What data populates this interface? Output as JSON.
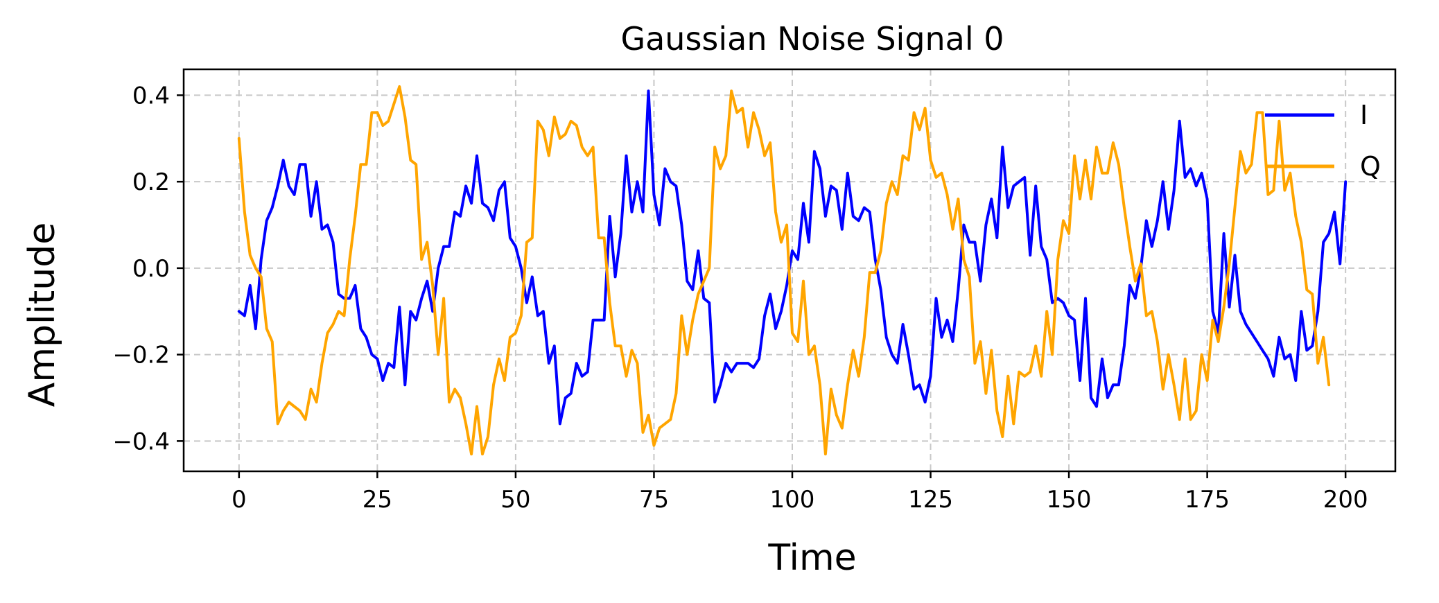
{
  "chart_data": {
    "type": "line",
    "title": "Gaussian Noise Signal 0",
    "xlabel": "Time",
    "ylabel": "Amplitude",
    "xlim": [
      -10,
      209
    ],
    "ylim": [
      -0.47,
      0.46
    ],
    "xticks": [
      0,
      25,
      50,
      75,
      100,
      125,
      150,
      175,
      200
    ],
    "xtick_labels": [
      "0",
      "25",
      "50",
      "75",
      "100",
      "125",
      "150",
      "175",
      "200"
    ],
    "yticks": [
      -0.4,
      -0.2,
      0.0,
      0.2,
      0.4
    ],
    "ytick_labels": [
      "−0.4",
      "−0.2",
      "0.0",
      "0.2",
      "0.4"
    ],
    "grid": true,
    "legend_position": "top-right",
    "series": [
      {
        "name": "I",
        "color": "#0000ff",
        "values": [
          -0.1,
          -0.11,
          -0.04,
          -0.14,
          0.02,
          0.11,
          0.14,
          0.19,
          0.25,
          0.19,
          0.17,
          0.24,
          0.24,
          0.12,
          0.2,
          0.09,
          0.1,
          0.06,
          -0.06,
          -0.07,
          -0.07,
          -0.04,
          -0.14,
          -0.16,
          -0.2,
          -0.21,
          -0.26,
          -0.22,
          -0.23,
          -0.09,
          -0.27,
          -0.1,
          -0.12,
          -0.07,
          -0.03,
          -0.1,
          0.0,
          0.05,
          0.05,
          0.13,
          0.12,
          0.19,
          0.15,
          0.26,
          0.15,
          0.14,
          0.11,
          0.18,
          0.2,
          0.07,
          0.05,
          0.0,
          -0.08,
          -0.02,
          -0.11,
          -0.1,
          -0.22,
          -0.18,
          -0.36,
          -0.3,
          -0.29,
          -0.22,
          -0.25,
          -0.24,
          -0.12,
          -0.12,
          -0.12,
          0.12,
          -0.02,
          0.08,
          0.26,
          0.13,
          0.2,
          0.13,
          0.41,
          0.17,
          0.1,
          0.23,
          0.2,
          0.19,
          0.1,
          -0.03,
          -0.05,
          0.04,
          -0.07,
          -0.08,
          -0.31,
          -0.27,
          -0.22,
          -0.24,
          -0.22,
          -0.22,
          -0.22,
          -0.23,
          -0.21,
          -0.11,
          -0.06,
          -0.14,
          -0.1,
          -0.04,
          0.04,
          0.02,
          0.15,
          0.06,
          0.27,
          0.23,
          0.12,
          0.19,
          0.18,
          0.09,
          0.22,
          0.12,
          0.11,
          0.14,
          0.13,
          0.02,
          -0.05,
          -0.16,
          -0.2,
          -0.22,
          -0.13,
          -0.2,
          -0.28,
          -0.27,
          -0.31,
          -0.25,
          -0.07,
          -0.16,
          -0.12,
          -0.17,
          -0.05,
          0.1,
          0.06,
          0.06,
          -0.03,
          0.1,
          0.16,
          0.07,
          0.28,
          0.14,
          0.19,
          0.2,
          0.21,
          0.03,
          0.19,
          0.05,
          0.02,
          -0.08,
          -0.07,
          -0.08,
          -0.11,
          -0.12,
          -0.26,
          -0.07,
          -0.3,
          -0.32,
          -0.21,
          -0.3,
          -0.27,
          -0.27,
          -0.18,
          -0.04,
          -0.07,
          0.0,
          0.11,
          0.05,
          0.11,
          0.2,
          0.09,
          0.18,
          0.34,
          0.21,
          0.23,
          0.19,
          0.22,
          0.16,
          -0.1,
          -0.15,
          0.08,
          -0.09,
          0.03,
          -0.1,
          -0.13,
          -0.15,
          -0.17,
          -0.19,
          -0.21,
          -0.25,
          -0.16,
          -0.21,
          -0.2,
          -0.26,
          -0.1,
          -0.19,
          -0.18,
          -0.1,
          0.06,
          0.08,
          0.13,
          0.01,
          0.2
        ]
      },
      {
        "name": "Q",
        "color": "#ffa500",
        "values": [
          0.3,
          0.13,
          0.03,
          0.0,
          -0.02,
          -0.14,
          -0.17,
          -0.36,
          -0.33,
          -0.31,
          -0.32,
          -0.33,
          -0.35,
          -0.28,
          -0.31,
          -0.22,
          -0.15,
          -0.13,
          -0.1,
          -0.11,
          0.02,
          0.12,
          0.24,
          0.24,
          0.36,
          0.36,
          0.33,
          0.34,
          0.38,
          0.42,
          0.35,
          0.25,
          0.24,
          0.02,
          0.06,
          -0.04,
          -0.2,
          -0.07,
          -0.31,
          -0.28,
          -0.3,
          -0.36,
          -0.43,
          -0.32,
          -0.43,
          -0.39,
          -0.27,
          -0.21,
          -0.26,
          -0.16,
          -0.15,
          -0.11,
          0.06,
          0.07,
          0.34,
          0.32,
          0.26,
          0.35,
          0.3,
          0.31,
          0.34,
          0.33,
          0.28,
          0.26,
          0.28,
          0.07,
          0.07,
          -0.08,
          -0.18,
          -0.18,
          -0.25,
          -0.19,
          -0.22,
          -0.38,
          -0.34,
          -0.41,
          -0.37,
          -0.36,
          -0.35,
          -0.29,
          -0.11,
          -0.2,
          -0.12,
          -0.06,
          -0.03,
          0.0,
          0.28,
          0.23,
          0.26,
          0.41,
          0.36,
          0.37,
          0.28,
          0.36,
          0.32,
          0.26,
          0.29,
          0.13,
          0.06,
          0.1,
          -0.15,
          -0.17,
          -0.03,
          -0.2,
          -0.18,
          -0.27,
          -0.43,
          -0.28,
          -0.34,
          -0.37,
          -0.27,
          -0.19,
          -0.25,
          -0.16,
          -0.01,
          -0.01,
          0.04,
          0.15,
          0.2,
          0.17,
          0.26,
          0.25,
          0.36,
          0.32,
          0.37,
          0.25,
          0.21,
          0.22,
          0.17,
          0.09,
          0.16,
          0.02,
          -0.02,
          -0.22,
          -0.17,
          -0.29,
          -0.19,
          -0.33,
          -0.39,
          -0.25,
          -0.36,
          -0.24,
          -0.25,
          -0.24,
          -0.18,
          -0.25,
          -0.1,
          -0.2,
          0.02,
          0.11,
          0.08,
          0.26,
          0.16,
          0.25,
          0.16,
          0.28,
          0.22,
          0.22,
          0.29,
          0.24,
          0.14,
          0.05,
          -0.03,
          0.01,
          -0.11,
          -0.1,
          -0.17,
          -0.28,
          -0.2,
          -0.27,
          -0.35,
          -0.21,
          -0.35,
          -0.33,
          -0.2,
          -0.26,
          -0.12,
          -0.17,
          -0.09,
          0.01,
          0.14,
          0.27,
          0.22,
          0.24,
          0.36,
          0.36,
          0.17,
          0.18,
          0.34,
          0.18,
          0.22,
          0.12,
          0.06,
          -0.05,
          -0.06,
          -0.22,
          -0.16,
          -0.27
        ]
      }
    ]
  }
}
